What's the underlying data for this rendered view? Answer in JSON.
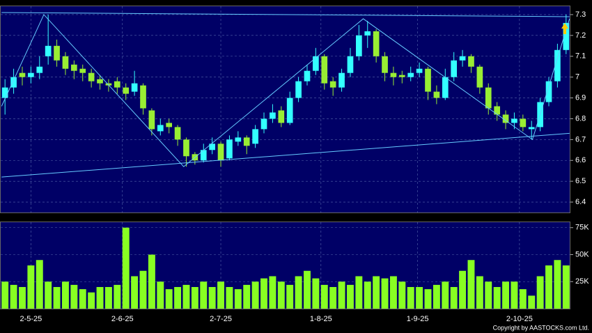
{
  "chart_data": [
    {
      "type": "candlestick",
      "open": [
        6.9,
        6.95,
        7.02,
        7.0,
        7.02,
        7.1,
        7.15,
        7.1,
        7.06,
        7.04,
        7.02,
        6.99,
        6.97,
        6.98,
        6.95,
        6.93,
        6.96,
        6.84,
        6.74,
        6.78,
        6.76,
        6.7,
        6.63,
        6.6,
        6.65,
        6.68,
        6.61,
        6.69,
        6.71,
        6.68,
        6.75,
        6.8,
        6.84,
        6.78,
        6.9,
        6.98,
        7.03,
        7.1,
        6.98,
        6.95,
        7.02,
        7.1,
        7.2,
        7.22,
        7.1,
        7.02,
        7.01,
        7.0,
        7.02,
        7.04,
        6.93,
        6.9,
        7.0,
        7.08,
        7.1,
        7.05,
        6.95,
        6.86,
        6.82,
        6.78,
        6.8,
        6.75,
        6.76,
        6.88,
        6.98,
        7.13
      ],
      "high": [
        6.99,
        7.04,
        7.05,
        7.05,
        7.1,
        7.3,
        7.18,
        7.12,
        7.08,
        7.06,
        7.04,
        7.01,
        6.99,
        7.0,
        6.97,
        7.03,
        6.97,
        6.85,
        6.8,
        6.8,
        6.77,
        6.71,
        6.64,
        6.68,
        6.71,
        6.69,
        6.72,
        6.74,
        6.72,
        6.77,
        6.83,
        6.87,
        6.86,
        6.93,
        7.0,
        7.06,
        7.14,
        7.11,
        7.0,
        7.04,
        7.14,
        7.25,
        7.27,
        7.23,
        7.12,
        7.05,
        7.03,
        7.05,
        7.07,
        7.05,
        6.96,
        7.04,
        7.12,
        7.13,
        7.11,
        7.06,
        6.97,
        6.88,
        6.84,
        6.83,
        6.82,
        6.79,
        6.9,
        7.0,
        7.16,
        7.3
      ],
      "low": [
        6.82,
        6.92,
        6.96,
        6.97,
        6.99,
        7.06,
        7.05,
        7.01,
        6.99,
        6.98,
        6.95,
        6.94,
        6.93,
        6.92,
        6.89,
        6.91,
        6.82,
        6.72,
        6.72,
        6.73,
        6.67,
        6.57,
        6.58,
        6.59,
        6.63,
        6.57,
        6.6,
        6.67,
        6.63,
        6.66,
        6.73,
        6.78,
        6.76,
        6.77,
        6.88,
        6.96,
        7.01,
        6.94,
        6.91,
        6.93,
        7.0,
        7.08,
        7.14,
        7.07,
        6.98,
        6.96,
        6.97,
        6.98,
        7.0,
        6.89,
        6.87,
        6.89,
        6.98,
        7.05,
        7.02,
        6.92,
        6.82,
        6.79,
        6.75,
        6.75,
        6.74,
        6.7,
        6.74,
        6.86,
        6.95,
        7.11
      ],
      "close": [
        6.95,
        7.0,
        7.0,
        7.02,
        7.05,
        7.15,
        7.08,
        7.04,
        7.03,
        7.02,
        6.98,
        6.97,
        6.96,
        6.95,
        6.92,
        6.97,
        6.85,
        6.75,
        6.77,
        6.76,
        6.7,
        6.62,
        6.6,
        6.65,
        6.68,
        6.6,
        6.7,
        6.71,
        6.67,
        6.75,
        6.8,
        6.83,
        6.78,
        6.9,
        6.98,
        7.03,
        7.1,
        6.97,
        6.95,
        7.02,
        7.1,
        7.2,
        7.22,
        7.1,
        7.02,
        7.0,
        7.0,
        7.02,
        7.04,
        6.93,
        6.9,
        7.0,
        7.08,
        7.1,
        7.05,
        6.95,
        6.85,
        6.82,
        6.78,
        6.8,
        6.76,
        6.76,
        6.88,
        6.98,
        7.13,
        7.26
      ],
      "up_color": "#33ffff",
      "down_color": "#99ee33",
      "xlim": [
        -0.5,
        65.5
      ],
      "xticks": [
        {
          "value": 3.0,
          "label": "2-5-25"
        },
        {
          "value": 13.6,
          "label": "2-6-25"
        },
        {
          "value": 25.0,
          "label": "2-7-25"
        },
        {
          "value": 36.6,
          "label": "1-8-25"
        },
        {
          "value": 47.8,
          "label": "1-9-25"
        },
        {
          "value": 59.6,
          "label": "2-10-25"
        }
      ],
      "ylim": [
        6.35,
        7.34
      ],
      "yticks": [
        6.4,
        6.5,
        6.6,
        6.7,
        6.8,
        6.9,
        7,
        7.1,
        7.2,
        7.3
      ],
      "grid": true,
      "lines": [
        {
          "color": "#66ccff",
          "points": [
            [
              -0.4,
              6.86
            ],
            [
              4.5,
              7.3
            ],
            [
              20.7,
              6.57
            ],
            [
              41.5,
              7.28
            ],
            [
              61.1,
              6.7
            ],
            [
              65.4,
              7.28
            ]
          ]
        },
        {
          "color": "#66ccff",
          "points": [
            [
              -0.4,
              7.31
            ],
            [
              65.4,
              7.29
            ]
          ]
        },
        {
          "color": "#66ccff",
          "points": [
            [
              -0.4,
              6.52
            ],
            [
              65.4,
              6.73
            ]
          ]
        }
      ]
    },
    {
      "type": "bar",
      "values": [
        25000,
        22000,
        20000,
        40000,
        45000,
        25000,
        20000,
        25000,
        22000,
        18000,
        15000,
        20000,
        20000,
        22000,
        75000,
        30000,
        35000,
        50000,
        25000,
        18000,
        20000,
        22000,
        20000,
        25000,
        20000,
        25000,
        20000,
        18000,
        22000,
        25000,
        28000,
        30000,
        25000,
        22000,
        30000,
        35000,
        28000,
        22000,
        20000,
        25000,
        22000,
        30000,
        25000,
        30000,
        28000,
        30000,
        25000,
        20000,
        20000,
        18000,
        22000,
        25000,
        20000,
        35000,
        45000,
        30000,
        25000,
        20000,
        25000,
        25000,
        18000,
        12000,
        30000,
        40000,
        45000,
        40000
      ],
      "color": "#88ff22",
      "ylim": [
        0,
        80000
      ],
      "yticks": [
        {
          "value": 25000,
          "label": "25K"
        },
        {
          "value": 50000,
          "label": "50K"
        },
        {
          "value": 75000,
          "label": "75K"
        }
      ],
      "grid": true
    }
  ],
  "footer": "Copyright by AASTOCKS.com Ltd."
}
